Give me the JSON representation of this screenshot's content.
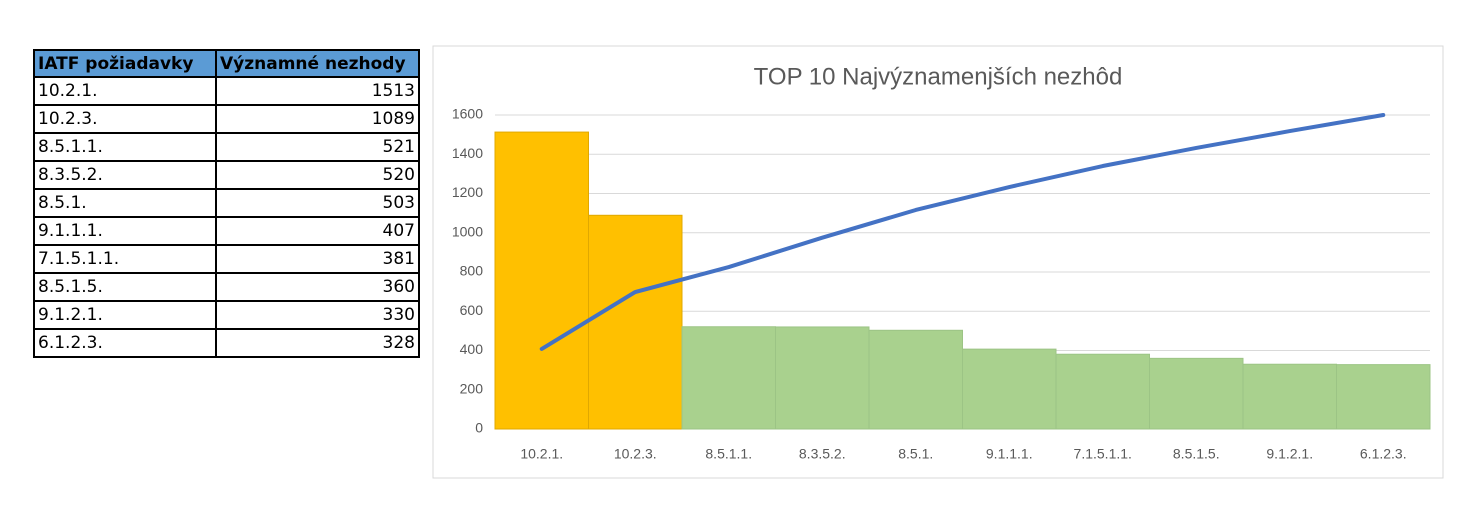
{
  "table": {
    "headers": [
      "IATF požiadavky",
      "Významné nezhody"
    ],
    "rows": [
      [
        "10.2.1.",
        1513
      ],
      [
        "10.2.3.",
        1089
      ],
      [
        "8.5.1.1.",
        521
      ],
      [
        "8.3.5.2.",
        520
      ],
      [
        "8.5.1.",
        503
      ],
      [
        "9.1.1.1.",
        407
      ],
      [
        "7.1.5.1.1.",
        381
      ],
      [
        "8.5.1.5.",
        360
      ],
      [
        "9.1.2.1.",
        330
      ],
      [
        "6.1.2.3.",
        328
      ]
    ]
  },
  "chart_data": {
    "type": "bar",
    "title": "TOP 10 Najvýznamenjších nezhôd",
    "categories": [
      "10.2.1.",
      "10.2.3.",
      "8.5.1.1.",
      "8.3.5.2.",
      "8.5.1.",
      "9.1.1.1.",
      "7.1.5.1.1.",
      "8.5.1.5.",
      "9.1.2.1.",
      "6.1.2.3."
    ],
    "series": [
      {
        "type": "bar",
        "values": [
          1513,
          1089,
          521,
          520,
          503,
          407,
          381,
          360,
          330,
          328
        ],
        "colors": [
          "#ffc000",
          "#ffc000",
          "#a9d18e",
          "#a9d18e",
          "#a9d18e",
          "#a9d18e",
          "#a9d18e",
          "#a9d18e",
          "#a9d18e",
          "#a9d18e"
        ]
      },
      {
        "type": "line",
        "color": "#4472c4",
        "values": [
          408,
          698,
          825,
          975,
          1116,
          1233,
          1340,
          1432,
          1518,
          1600
        ]
      }
    ],
    "ylim": [
      0,
      1600
    ],
    "yticks": [
      0,
      200,
      400,
      600,
      800,
      1000,
      1200,
      1400,
      1600
    ],
    "grid": true
  }
}
